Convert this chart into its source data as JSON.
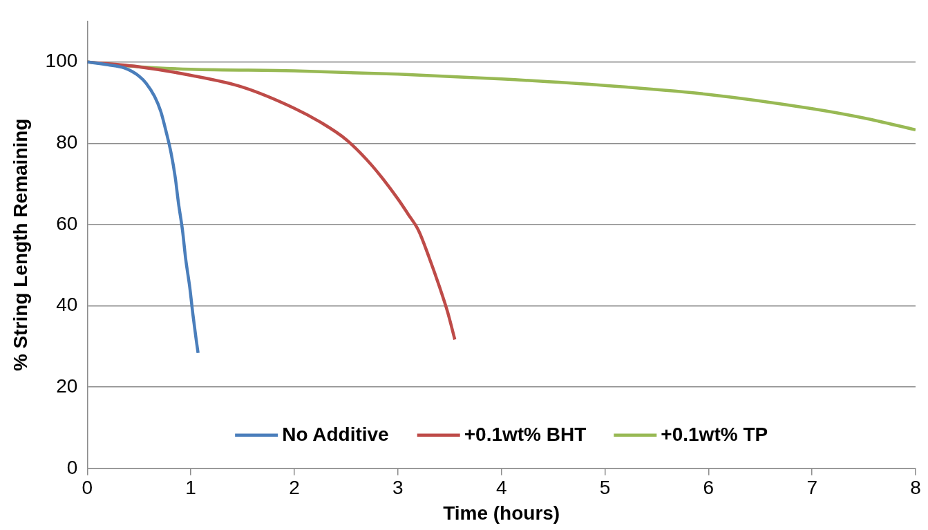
{
  "chart_data": {
    "type": "line",
    "xlabel": "Time (hours)",
    "ylabel": "% String Length Remaining",
    "xlim": [
      0,
      8
    ],
    "xticks": [
      0,
      1,
      2,
      3,
      4,
      5,
      6,
      7,
      8
    ],
    "ylim": [
      0,
      110
    ],
    "yticks": [
      0,
      20,
      40,
      60,
      80,
      100
    ],
    "grid": "y",
    "legend": "bottom",
    "marker": "none",
    "line_style": "solid",
    "series": [
      {
        "name": "No Additive",
        "color": "#4a7ebb",
        "x": [
          0,
          0.2,
          0.36,
          0.5,
          0.57,
          0.65,
          0.71,
          0.76,
          0.81,
          0.85,
          0.88,
          0.92,
          0.95,
          0.99,
          1.02,
          1.05,
          1.07
        ],
        "values": [
          100,
          99.3,
          98.5,
          96.5,
          94.7,
          91.5,
          87.8,
          83,
          77.5,
          71.5,
          65.4,
          58.5,
          51.6,
          44.5,
          37.9,
          32,
          28.4
        ]
      },
      {
        "name": "+0.1wt% BHT",
        "color": "#be4b48",
        "x": [
          0,
          0.5,
          1,
          1.5,
          2,
          2.25,
          2.5,
          2.75,
          3,
          3.1,
          3.2,
          3.3,
          3.4,
          3.48,
          3.55
        ],
        "values": [
          100,
          98.8,
          96.7,
          93.8,
          88.6,
          85.2,
          80.9,
          74.5,
          66.3,
          62.5,
          58.5,
          52,
          44.8,
          38.5,
          31.7
        ]
      },
      {
        "name": "+0.1wt% TP",
        "color": "#98b954",
        "x": [
          0,
          0.5,
          1,
          2,
          3,
          4,
          5,
          6,
          7,
          7.5,
          8
        ],
        "values": [
          100,
          98.8,
          98.2,
          97.8,
          97,
          95.8,
          94.2,
          92,
          88.5,
          86.2,
          83.3
        ]
      }
    ]
  }
}
